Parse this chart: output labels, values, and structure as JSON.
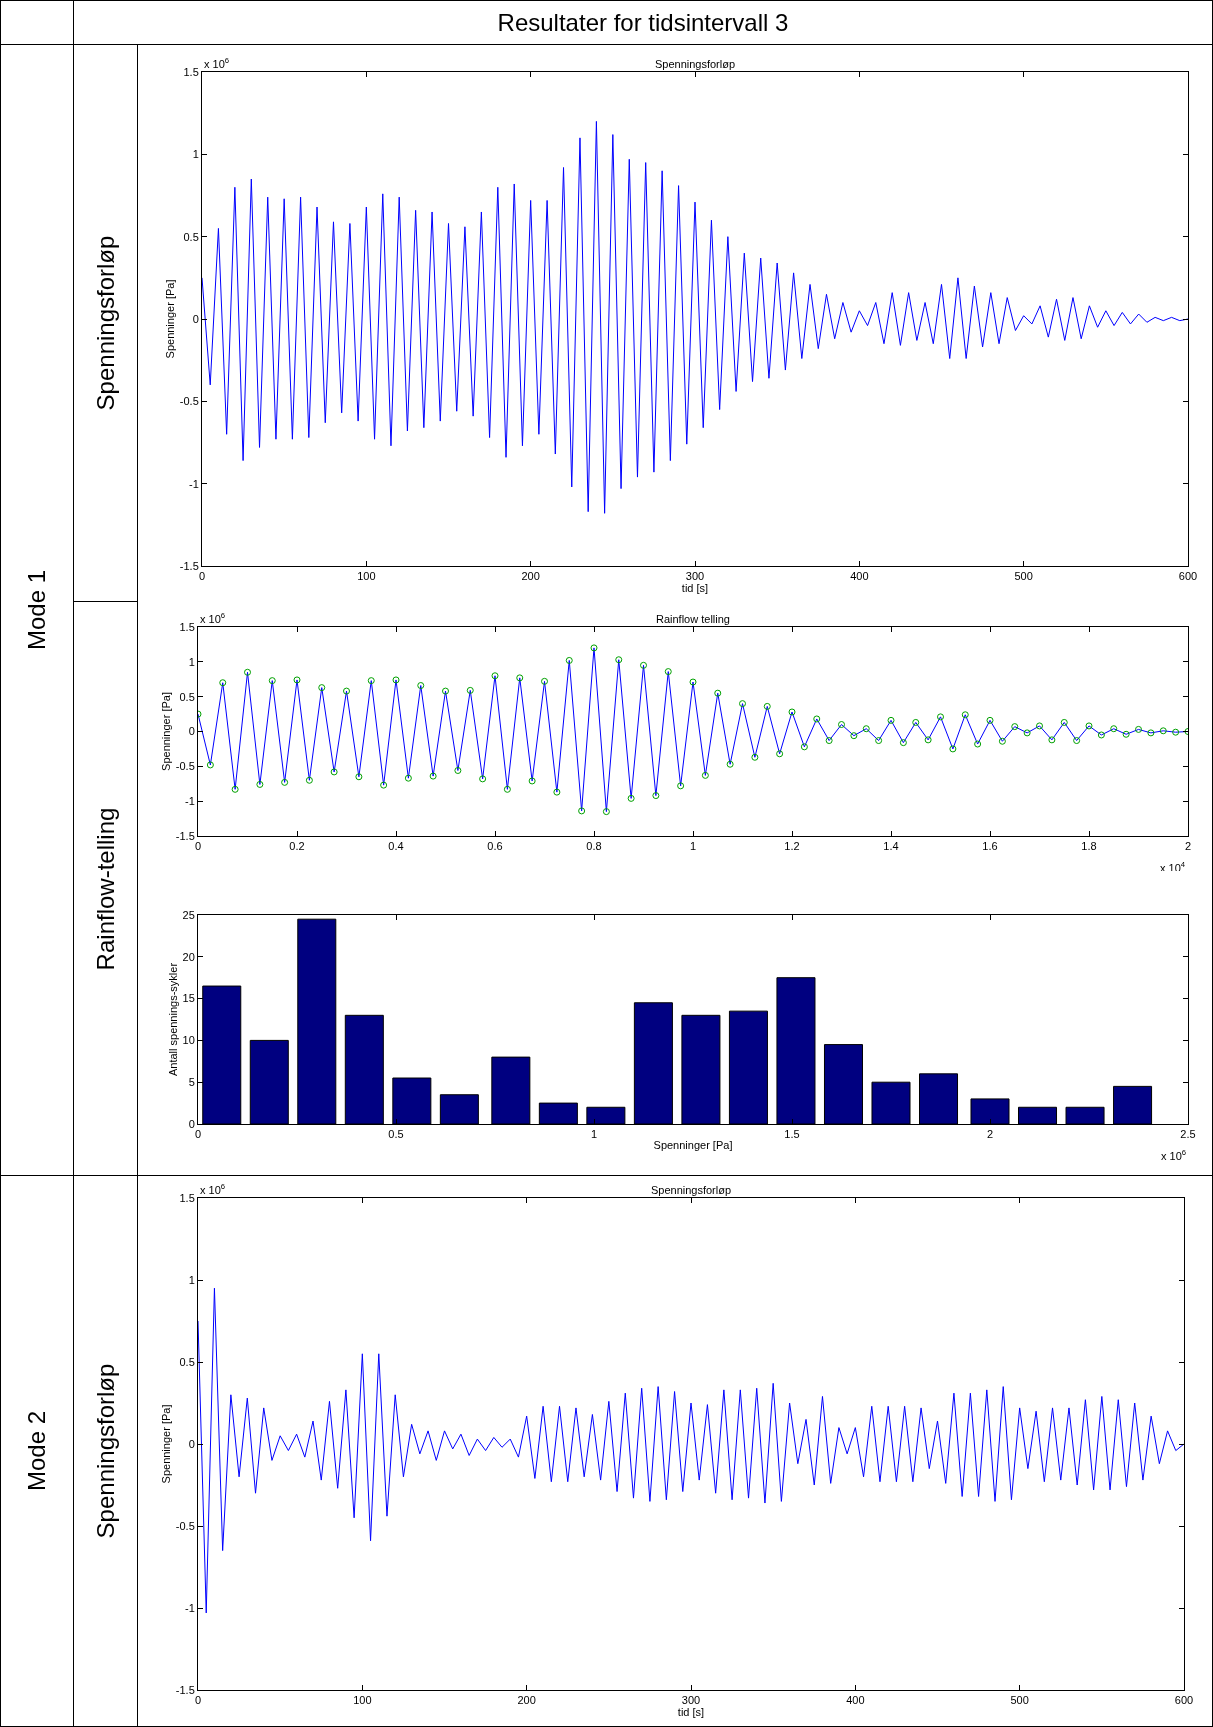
{
  "chart_data": [
    {
      "type": "line",
      "title": "Spenningsforløp",
      "xlabel": "tid [s]",
      "ylabel": "Spenninger [Pa]",
      "annotations": [
        "Resultater for tidsintervall 3",
        "Mode 1",
        "Spenningsforløp",
        "x 10$^{6}$"
      ],
      "x": [
        0,
        5,
        10,
        15,
        20,
        25,
        30,
        35,
        40,
        45,
        50,
        55,
        60,
        65,
        70,
        75,
        80,
        85,
        90,
        95,
        100,
        105,
        110,
        115,
        120,
        125,
        130,
        135,
        140,
        145,
        150,
        155,
        160,
        165,
        170,
        175,
        180,
        185,
        190,
        195,
        200,
        205,
        210,
        215,
        220,
        225,
        230,
        235,
        240,
        245,
        250,
        255,
        260,
        265,
        270,
        275,
        280,
        285,
        290,
        295,
        300,
        305,
        310,
        315,
        320,
        325,
        330,
        335,
        340,
        345,
        350,
        355,
        360,
        365,
        370,
        375,
        380,
        385,
        390,
        395,
        400,
        405,
        410,
        415,
        420,
        425,
        430,
        435,
        440,
        445,
        450,
        455,
        460,
        465,
        470,
        475,
        480,
        485,
        490,
        495,
        500,
        505,
        510,
        515,
        520,
        525,
        530,
        535,
        540,
        545,
        550,
        555,
        560,
        565,
        570,
        575,
        580,
        585,
        590,
        595,
        600
      ],
      "series": [
        {
          "color": "#0000ff",
          "values": [
            0.25,
            -0.4,
            0.55,
            -0.7,
            0.8,
            -0.86,
            0.85,
            -0.78,
            0.74,
            -0.73,
            0.73,
            -0.73,
            0.74,
            -0.72,
            0.68,
            -0.63,
            0.59,
            -0.57,
            0.58,
            -0.62,
            0.68,
            -0.73,
            0.76,
            -0.77,
            0.74,
            -0.68,
            0.66,
            -0.66,
            0.65,
            -0.62,
            0.58,
            -0.56,
            0.56,
            -0.59,
            0.65,
            -0.72,
            0.8,
            -0.84,
            0.82,
            -0.77,
            0.72,
            -0.7,
            0.72,
            -0.82,
            0.92,
            -1.02,
            1.1,
            -1.17,
            1.2,
            -1.18,
            1.12,
            -1.03,
            0.97,
            -0.96,
            0.95,
            -0.93,
            0.9,
            -0.86,
            0.81,
            -0.76,
            0.71,
            -0.66,
            0.6,
            -0.55,
            0.5,
            -0.44,
            0.4,
            -0.38,
            0.37,
            -0.36,
            0.34,
            -0.31,
            0.28,
            -0.24,
            0.21,
            -0.18,
            0.15,
            -0.12,
            0.1,
            -0.08,
            0.05,
            -0.04,
            0.1,
            -0.15,
            0.16,
            -0.16,
            0.16,
            -0.13,
            0.1,
            -0.15,
            0.21,
            -0.24,
            0.25,
            -0.24,
            0.2,
            -0.17,
            0.16,
            -0.15,
            0.13,
            -0.07,
            0.02,
            -0.03,
            0.08,
            -0.11,
            0.12,
            -0.13,
            0.13,
            -0.12,
            0.08,
            -0.05,
            0.05,
            -0.04,
            0.04,
            -0.03,
            0.03,
            -0.02,
            0.01,
            -0.01,
            0.01,
            -0.01,
            0
          ]
        }
      ],
      "xlim": [
        0,
        600
      ],
      "xticks": [
        0,
        100,
        200,
        300,
        400,
        500,
        600
      ],
      "ylim": [
        -1.5,
        1.5
      ],
      "yticks": [
        -1.5,
        -1,
        -0.5,
        0,
        0.5,
        1,
        1.5
      ]
    },
    {
      "type": "line",
      "title": "Rainflow telling",
      "ylabel": "Spenninger [Pa]",
      "annotations": [
        "Rainflow-telling",
        "x 10$^{6}$",
        "x 10$^{4}$"
      ],
      "x": [
        0,
        0.025,
        0.05,
        0.075,
        0.1,
        0.125,
        0.15,
        0.175,
        0.2,
        0.225,
        0.25,
        0.275,
        0.3,
        0.325,
        0.35,
        0.375,
        0.4,
        0.425,
        0.45,
        0.475,
        0.5,
        0.525,
        0.55,
        0.575,
        0.6,
        0.625,
        0.65,
        0.675,
        0.7,
        0.725,
        0.75,
        0.775,
        0.8,
        0.825,
        0.85,
        0.875,
        0.9,
        0.925,
        0.95,
        0.975,
        1,
        1.025,
        1.05,
        1.075,
        1.1,
        1.125,
        1.15,
        1.175,
        1.2,
        1.225,
        1.25,
        1.275,
        1.3,
        1.325,
        1.35,
        1.375,
        1.4,
        1.425,
        1.45,
        1.475,
        1.5,
        1.525,
        1.55,
        1.575,
        1.6,
        1.625,
        1.65,
        1.675,
        1.7,
        1.725,
        1.75,
        1.775,
        1.8,
        1.825,
        1.85,
        1.875,
        1.9,
        1.925,
        1.95,
        1.975,
        2
      ],
      "series": [
        {
          "color": "#0000ff",
          "values": [
            0.25,
            -0.48,
            0.7,
            -0.83,
            0.85,
            -0.76,
            0.73,
            -0.73,
            0.74,
            -0.7,
            0.63,
            -0.58,
            0.58,
            -0.65,
            0.73,
            -0.77,
            0.74,
            -0.67,
            0.66,
            -0.64,
            0.58,
            -0.56,
            0.59,
            -0.68,
            0.8,
            -0.83,
            0.77,
            -0.71,
            0.72,
            -0.87,
            1.02,
            -1.14,
            1.2,
            -1.15,
            1.03,
            -0.96,
            0.95,
            -0.92,
            0.86,
            -0.78,
            0.71,
            -0.63,
            0.55,
            -0.47,
            0.4,
            -0.37,
            0.36,
            -0.32,
            0.28,
            -0.22,
            0.18,
            -0.13,
            0.1,
            -0.06,
            0.04,
            -0.13,
            0.16,
            -0.16,
            0.13,
            -0.12,
            0.21,
            -0.25,
            0.24,
            -0.18,
            0.16,
            -0.14,
            0.07,
            -0.02,
            0.08,
            -0.12,
            0.13,
            -0.13,
            0.08,
            -0.05,
            0.04,
            -0.04,
            0.03,
            -0.02,
            0.01,
            -0.01,
            0
          ]
        },
        {
          "type": "scatter",
          "marker": "circle",
          "color": "#00a000",
          "values": [
            0.25,
            -0.48,
            0.7,
            -0.83,
            0.85,
            -0.76,
            0.73,
            -0.73,
            0.74,
            -0.7,
            0.63,
            -0.58,
            0.58,
            -0.65,
            0.73,
            -0.77,
            0.74,
            -0.67,
            0.66,
            -0.64,
            0.58,
            -0.56,
            0.59,
            -0.68,
            0.8,
            -0.83,
            0.77,
            -0.71,
            0.72,
            -0.87,
            1.02,
            -1.14,
            1.2,
            -1.15,
            1.03,
            -0.96,
            0.95,
            -0.92,
            0.86,
            -0.78,
            0.71,
            -0.63,
            0.55,
            -0.47,
            0.4,
            -0.37,
            0.36,
            -0.32,
            0.28,
            -0.22,
            0.18,
            -0.13,
            0.1,
            -0.06,
            0.04,
            -0.13,
            0.16,
            -0.16,
            0.13,
            -0.12,
            0.21,
            -0.25,
            0.24,
            -0.18,
            0.16,
            -0.14,
            0.07,
            -0.02,
            0.08,
            -0.12,
            0.13,
            -0.13,
            0.08,
            -0.05,
            0.04,
            -0.04,
            0.03,
            -0.02,
            0.01,
            -0.01,
            0
          ]
        }
      ],
      "xlim": [
        0,
        2
      ],
      "xticks": [
        0,
        0.2,
        0.4,
        0.6,
        0.8,
        1,
        1.2,
        1.4,
        1.6,
        1.8,
        2
      ],
      "ylim": [
        -1.5,
        1.5
      ],
      "yticks": [
        -1.5,
        -1,
        -0.5,
        0,
        0.5,
        1,
        1.5
      ]
    },
    {
      "type": "bar",
      "xlabel": "Spenninger [Pa]",
      "ylabel": "Antall spennings-sykler",
      "annotations": [
        "x 10$^{6}$"
      ],
      "x": [
        0.06,
        0.18,
        0.3,
        0.42,
        0.54,
        0.66,
        0.79,
        0.91,
        1.03,
        1.15,
        1.27,
        1.39,
        1.51,
        1.63,
        1.75,
        1.87,
        2,
        2.12,
        2.24,
        2.36
      ],
      "series": [
        {
          "color": "#000080",
          "values": [
            16.5,
            10,
            24.5,
            13,
            5.5,
            3.5,
            8,
            2.5,
            2,
            14.5,
            13,
            13.5,
            17.5,
            9.5,
            5,
            6,
            3,
            2,
            2,
            4.5
          ]
        }
      ],
      "xlim": [
        0,
        2.5
      ],
      "xticks": [
        0,
        0.5,
        1,
        1.5,
        2,
        2.5
      ],
      "ylim": [
        0,
        25
      ],
      "yticks": [
        0,
        5,
        10,
        15,
        20,
        25
      ]
    },
    {
      "type": "line",
      "title": "Spenningsforløp",
      "xlabel": "tid [s]",
      "ylabel": "Spenninger [Pa]",
      "annotations": [
        "Mode 2",
        "Spenningsforløp",
        "x 10$^{6}$"
      ],
      "x": [
        0,
        5,
        10,
        15,
        20,
        25,
        30,
        35,
        40,
        45,
        50,
        55,
        60,
        65,
        70,
        75,
        80,
        85,
        90,
        95,
        100,
        105,
        110,
        115,
        120,
        125,
        130,
        135,
        140,
        145,
        150,
        155,
        160,
        165,
        170,
        175,
        180,
        185,
        190,
        195,
        200,
        205,
        210,
        215,
        220,
        225,
        230,
        235,
        240,
        245,
        250,
        255,
        260,
        265,
        270,
        275,
        280,
        285,
        290,
        295,
        300,
        305,
        310,
        315,
        320,
        325,
        330,
        335,
        340,
        345,
        350,
        355,
        360,
        365,
        370,
        375,
        380,
        385,
        390,
        395,
        400,
        405,
        410,
        415,
        420,
        425,
        430,
        435,
        440,
        445,
        450,
        455,
        460,
        465,
        470,
        475,
        480,
        485,
        490,
        495,
        500,
        505,
        510,
        515,
        520,
        525,
        530,
        535,
        540,
        545,
        550,
        555,
        560,
        565,
        570,
        575,
        580,
        585,
        590,
        595,
        600
      ],
      "series": [
        {
          "color": "#0000ff",
          "values": [
            0.75,
            -1.03,
            0.95,
            -0.65,
            0.3,
            -0.2,
            0.28,
            -0.3,
            0.22,
            -0.1,
            0.05,
            -0.04,
            0.06,
            -0.08,
            0.14,
            -0.22,
            0.26,
            -0.27,
            0.33,
            -0.45,
            0.55,
            -0.59,
            0.55,
            -0.44,
            0.3,
            -0.2,
            0.12,
            -0.06,
            0.08,
            -0.1,
            0.08,
            -0.03,
            0.06,
            -0.07,
            0.03,
            -0.04,
            0.04,
            -0.02,
            0.03,
            -0.08,
            0.17,
            -0.21,
            0.23,
            -0.23,
            0.23,
            -0.23,
            0.22,
            -0.2,
            0.18,
            -0.22,
            0.26,
            -0.29,
            0.31,
            -0.33,
            0.34,
            -0.35,
            0.35,
            -0.34,
            0.32,
            -0.29,
            0.25,
            -0.22,
            0.24,
            -0.3,
            0.33,
            -0.34,
            0.33,
            -0.33,
            0.34,
            -0.36,
            0.37,
            -0.35,
            0.25,
            -0.12,
            0.15,
            -0.25,
            0.29,
            -0.24,
            0.1,
            -0.06,
            0.1,
            -0.2,
            0.23,
            -0.23,
            0.23,
            -0.23,
            0.23,
            -0.23,
            0.22,
            -0.15,
            0.14,
            -0.24,
            0.31,
            -0.32,
            0.31,
            -0.32,
            0.33,
            -0.35,
            0.35,
            -0.34,
            0.22,
            -0.15,
            0.2,
            -0.23,
            0.22,
            -0.22,
            0.22,
            -0.25,
            0.27,
            -0.28,
            0.29,
            -0.28,
            0.27,
            -0.26,
            0.25,
            -0.22,
            0.17,
            -0.12,
            0.08,
            -0.04,
            0
          ]
        }
      ],
      "xlim": [
        0,
        600
      ],
      "xticks": [
        0,
        100,
        200,
        300,
        400,
        500,
        600
      ],
      "ylim": [
        -1.5,
        1.5
      ],
      "yticks": [
        -1.5,
        -1,
        -0.5,
        0,
        0.5,
        1,
        1.5
      ]
    }
  ]
}
